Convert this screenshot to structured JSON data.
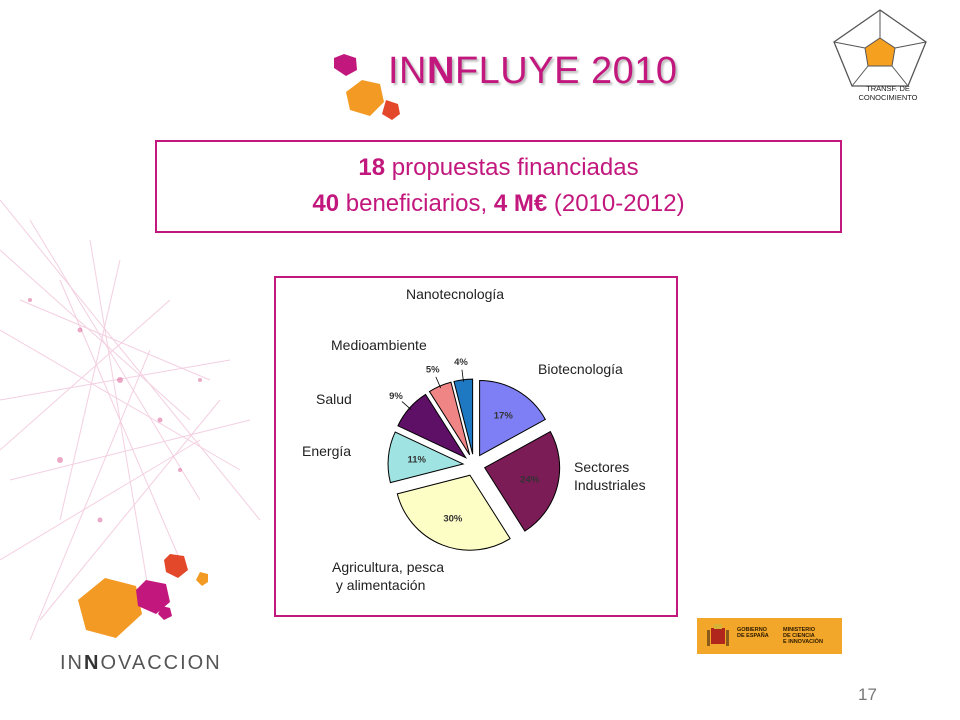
{
  "slide": {
    "title_pre": "IN",
    "title_bold": "N",
    "title_post": "FLUYE 2010",
    "corner_logo_label": "TRANSF. DE\nCONOCIMIENTO",
    "box": {
      "line1_num": "18",
      "line1_text": " propuestas  financiadas",
      "line2_num": "40",
      "line2_text1": " beneficiarios, ",
      "line2_num2": "4 M€",
      "line2_text2": " (2010-2012)"
    },
    "brand_pre": "IN",
    "brand_bold": "N",
    "brand_post": "OVACCION",
    "gov_left": "GOBIERNO\nDE ESPAÑA",
    "gov_right": "MINISTERIO\nDE CIENCIA\nE INNOVACIÓN",
    "page_number": "17"
  },
  "colors": {
    "accent": "#c2187d",
    "orange": "#f2a62a"
  },
  "chart_data": {
    "type": "pie",
    "exploded": true,
    "slices": [
      {
        "label": "Biotecnología",
        "value": 17,
        "pct_label": "17%",
        "color": "#7f7ff5"
      },
      {
        "label": "Sectores\nIndustriales",
        "value": 24,
        "pct_label": "24%",
        "color": "#7b1c57"
      },
      {
        "label": "Agricultura, pesca\n y alimentación",
        "value": 30,
        "pct_label": "30%",
        "color": "#fdfdc6"
      },
      {
        "label": "Energía",
        "value": 11,
        "pct_label": "11%",
        "color": "#9fe3e2"
      },
      {
        "label": "Salud",
        "value": 9,
        "pct_label": "9%",
        "color": "#5e0f66"
      },
      {
        "label": "Medioambiente",
        "value": 5,
        "pct_label": "5%",
        "color": "#f08585"
      },
      {
        "label": "Nanotecnología",
        "value": 4,
        "pct_label": "4%",
        "color": "#1f79c2"
      }
    ]
  }
}
